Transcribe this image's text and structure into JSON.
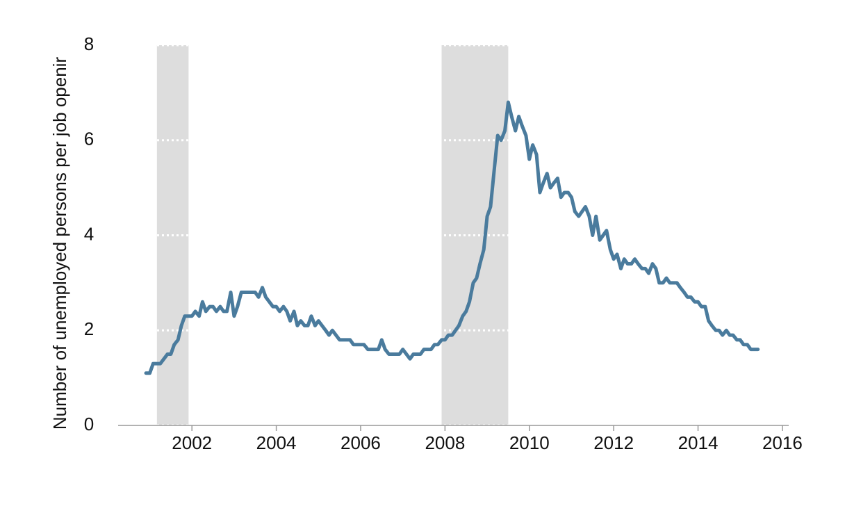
{
  "chart_data": {
    "type": "line",
    "y_label": "Number of unemployed persons per job openir",
    "xlim": [
      2000.25,
      2016.15
    ],
    "ylim": [
      0,
      8
    ],
    "xticks": [
      2002,
      2004,
      2006,
      2008,
      2010,
      2012,
      2014,
      2016
    ],
    "yticks": [
      0,
      2,
      4,
      6,
      8
    ],
    "grid": true,
    "grid_color": "#ffffff",
    "shade_color": "#dddddd",
    "recessions": [
      {
        "start": 2001.17,
        "end": 2001.92
      },
      {
        "start": 2007.92,
        "end": 2009.5
      }
    ],
    "series": [
      {
        "color": "#4a7b9d",
        "x": [
          2000.91,
          2001.0,
          2001.08,
          2001.25,
          2001.42,
          2001.5,
          2001.58,
          2001.67,
          2001.75,
          2001.83,
          2002.0,
          2002.08,
          2002.17,
          2002.25,
          2002.33,
          2002.42,
          2002.5,
          2002.58,
          2002.67,
          2002.75,
          2002.83,
          2002.92,
          2003.0,
          2003.08,
          2003.17,
          2003.5,
          2003.58,
          2003.67,
          2003.75,
          2003.92,
          2004.0,
          2004.08,
          2004.17,
          2004.25,
          2004.33,
          2004.42,
          2004.5,
          2004.58,
          2004.67,
          2004.75,
          2004.83,
          2004.92,
          2005.0,
          2005.17,
          2005.25,
          2005.33,
          2005.5,
          2005.75,
          2005.83,
          2006.08,
          2006.17,
          2006.42,
          2006.5,
          2006.58,
          2006.67,
          2006.92,
          2007.0,
          2007.17,
          2007.25,
          2007.42,
          2007.5,
          2007.67,
          2007.75,
          2007.83,
          2007.92,
          2008.0,
          2008.08,
          2008.17,
          2008.25,
          2008.33,
          2008.42,
          2008.5,
          2008.58,
          2008.67,
          2008.75,
          2008.83,
          2008.92,
          2009.0,
          2009.08,
          2009.17,
          2009.25,
          2009.33,
          2009.42,
          2009.5,
          2009.58,
          2009.67,
          2009.75,
          2009.83,
          2009.92,
          2010.0,
          2010.08,
          2010.17,
          2010.25,
          2010.33,
          2010.42,
          2010.5,
          2010.58,
          2010.67,
          2010.75,
          2010.83,
          2010.92,
          2011.0,
          2011.08,
          2011.17,
          2011.25,
          2011.33,
          2011.42,
          2011.5,
          2011.58,
          2011.67,
          2011.75,
          2011.83,
          2011.92,
          2012.0,
          2012.08,
          2012.17,
          2012.25,
          2012.33,
          2012.42,
          2012.5,
          2012.58,
          2012.67,
          2012.75,
          2012.83,
          2012.92,
          2013.0,
          2013.08,
          2013.17,
          2013.25,
          2013.33,
          2013.5,
          2013.58,
          2013.67,
          2013.75,
          2013.83,
          2013.92,
          2014.0,
          2014.08,
          2014.17,
          2014.25,
          2014.33,
          2014.42,
          2014.5,
          2014.58,
          2014.67,
          2014.75,
          2014.83,
          2014.92,
          2015.0,
          2015.08,
          2015.17,
          2015.25,
          2015.42
        ],
        "values": [
          1.1,
          1.1,
          1.3,
          1.3,
          1.5,
          1.5,
          1.7,
          1.8,
          2.1,
          2.3,
          2.3,
          2.4,
          2.3,
          2.6,
          2.4,
          2.5,
          2.5,
          2.4,
          2.5,
          2.4,
          2.4,
          2.8,
          2.3,
          2.5,
          2.8,
          2.8,
          2.7,
          2.9,
          2.7,
          2.5,
          2.5,
          2.4,
          2.5,
          2.4,
          2.2,
          2.4,
          2.1,
          2.2,
          2.1,
          2.1,
          2.3,
          2.1,
          2.2,
          2.0,
          1.9,
          2.0,
          1.8,
          1.8,
          1.7,
          1.7,
          1.6,
          1.6,
          1.8,
          1.6,
          1.5,
          1.5,
          1.6,
          1.4,
          1.5,
          1.5,
          1.6,
          1.6,
          1.7,
          1.7,
          1.8,
          1.8,
          1.9,
          1.9,
          2.0,
          2.1,
          2.3,
          2.4,
          2.6,
          3.0,
          3.1,
          3.4,
          3.7,
          4.4,
          4.6,
          5.4,
          6.1,
          6.0,
          6.2,
          6.8,
          6.5,
          6.2,
          6.5,
          6.3,
          6.1,
          5.6,
          5.9,
          5.7,
          4.9,
          5.1,
          5.3,
          5.0,
          5.1,
          5.2,
          4.8,
          4.9,
          4.9,
          4.8,
          4.5,
          4.4,
          4.5,
          4.6,
          4.4,
          4.0,
          4.4,
          3.9,
          4.0,
          4.1,
          3.7,
          3.5,
          3.6,
          3.3,
          3.5,
          3.4,
          3.4,
          3.5,
          3.4,
          3.3,
          3.3,
          3.2,
          3.4,
          3.3,
          3.0,
          3.0,
          3.1,
          3.0,
          3.0,
          2.9,
          2.8,
          2.7,
          2.7,
          2.6,
          2.6,
          2.5,
          2.5,
          2.2,
          2.1,
          2.0,
          2.0,
          1.9,
          2.0,
          1.9,
          1.9,
          1.8,
          1.8,
          1.7,
          1.7,
          1.6,
          1.6
        ]
      }
    ]
  }
}
